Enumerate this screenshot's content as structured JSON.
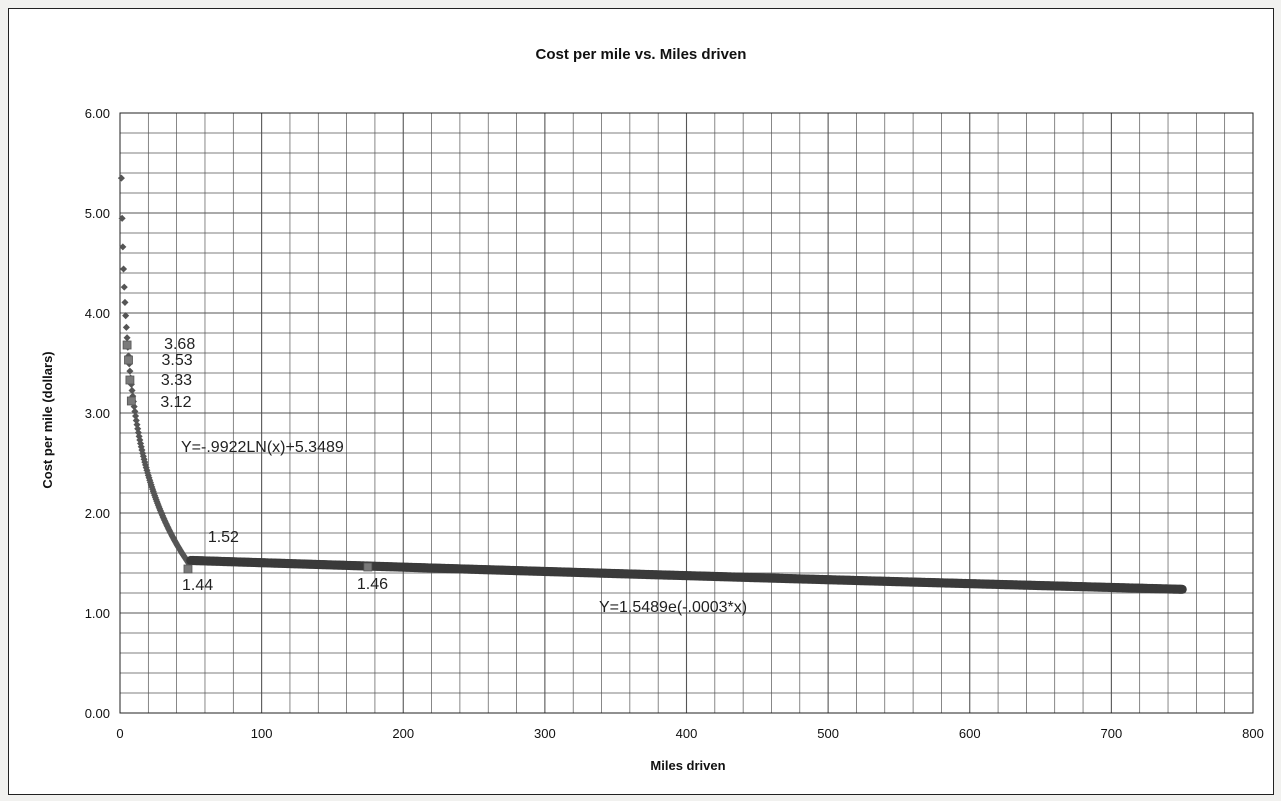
{
  "chart_data": {
    "type": "scatter",
    "title": "Cost per mile vs. Miles driven",
    "xlabel": "Miles driven",
    "ylabel": "Cost per mile (dollars)",
    "xlim": [
      0,
      800
    ],
    "ylim": [
      0,
      6
    ],
    "x_ticks": [
      "0",
      "100",
      "200",
      "300",
      "400",
      "500",
      "600",
      "700",
      "800"
    ],
    "y_ticks": [
      "0.00",
      "1.00",
      "2.00",
      "3.00",
      "4.00",
      "5.00",
      "6.00"
    ],
    "grid": true,
    "series": [
      {
        "fit": "logarithmic",
        "x_range": [
          1,
          49
        ],
        "equation": "Y=-.9922LN(x)+5.3489",
        "color": "#333333"
      },
      {
        "fit": "exponential",
        "x_range": [
          50,
          750
        ],
        "equation": "Y=1.5489e(-.0003*x)",
        "color": "#333333"
      }
    ],
    "annotations": [
      {
        "text": "3.68",
        "x": 5,
        "y": 3.68
      },
      {
        "text": "3.53",
        "x": 6,
        "y": 3.53
      },
      {
        "text": "3.33",
        "x": 7,
        "y": 3.33
      },
      {
        "text": "3.12",
        "x": 8,
        "y": 3.12
      },
      {
        "text": "1.52",
        "x": 50,
        "y": 1.52
      },
      {
        "text": "1.44",
        "x": 48,
        "y": 1.44
      },
      {
        "text": "1.46",
        "x": 175,
        "y": 1.46
      }
    ],
    "highlight_points": [
      {
        "x": 5,
        "y": 3.68
      },
      {
        "x": 6,
        "y": 3.53
      },
      {
        "x": 7,
        "y": 3.33
      },
      {
        "x": 8,
        "y": 3.12
      },
      {
        "x": 48,
        "y": 1.44
      },
      {
        "x": 175,
        "y": 1.46
      }
    ],
    "marker_color": "#555555"
  }
}
